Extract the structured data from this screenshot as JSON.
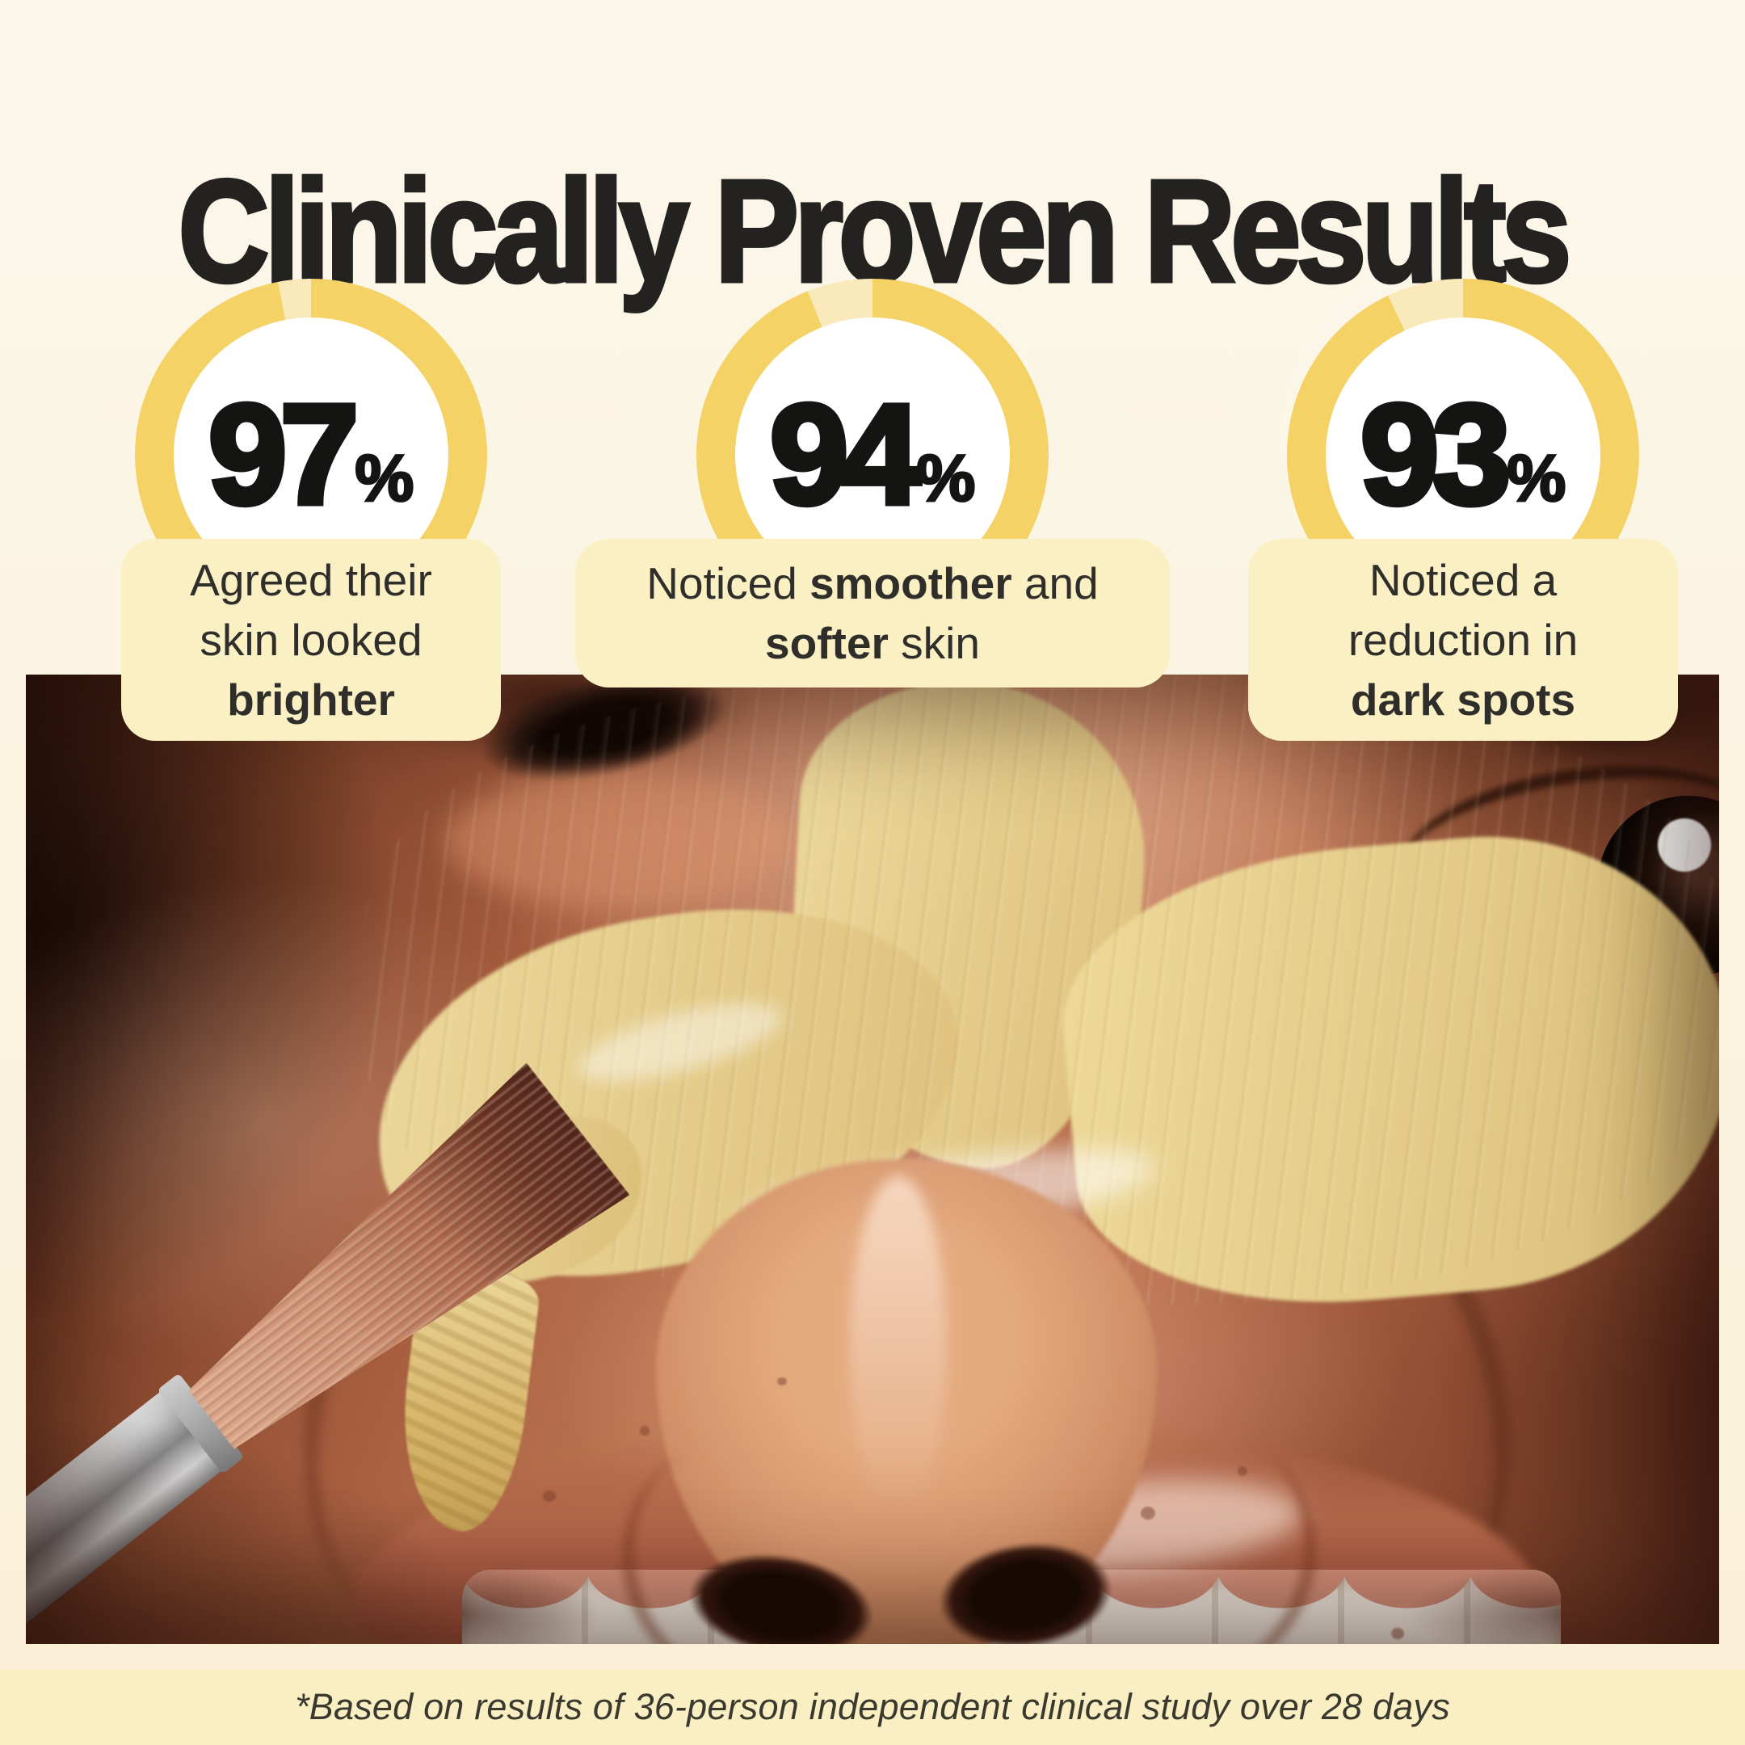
{
  "title": "Clinically Proven Results",
  "stats": [
    {
      "value": 97,
      "unit": "%",
      "lines": [
        [
          {
            "t": "Agreed their"
          }
        ],
        [
          {
            "t": "skin looked"
          }
        ],
        [
          {
            "t": "brighter",
            "b": true
          }
        ]
      ]
    },
    {
      "value": 94,
      "unit": "%",
      "lines": [
        [
          {
            "t": "Noticed "
          },
          {
            "t": "smoother",
            "b": true
          },
          {
            "t": " and"
          }
        ],
        [
          {
            "t": "softer",
            "b": true
          },
          {
            "t": " skin"
          }
        ]
      ]
    },
    {
      "value": 93,
      "unit": "%",
      "lines": [
        [
          {
            "t": "Noticed a"
          }
        ],
        [
          {
            "t": "reduction in"
          }
        ],
        [
          {
            "t": "dark spots",
            "b": true
          }
        ]
      ]
    }
  ],
  "disclaimer": "*Based on results of 36-person independent clinical study over 28 days",
  "photo": {
    "alt": "Close-up of a smiling face with yellow clay mask being applied to the nose and cheeks with a silver makeup brush"
  },
  "colors": {
    "page_top": "#FCF7EB",
    "page_bottom": "#FAF0D6",
    "ring_fill": "#F5D266",
    "ring_remainder": "#FAE9BA",
    "card_bg": "#FAF0C4",
    "strip_bg": "#FAEFC2",
    "title_ink": "#232220",
    "body_ink": "#2F2E2B"
  },
  "chart_data": {
    "type": "pie",
    "subtype": "donut-gauge",
    "unit": "%",
    "series": [
      {
        "label": "Agreed their skin looked brighter",
        "value": 97
      },
      {
        "label": "Noticed smoother and softer skin",
        "value": 94
      },
      {
        "label": "Noticed a reduction in dark spots",
        "value": 93
      }
    ],
    "ring_color": "#F5D266",
    "ring_remainder_color": "#FAE9BA",
    "start_angle_deg": 0,
    "direction": "clockwise"
  }
}
